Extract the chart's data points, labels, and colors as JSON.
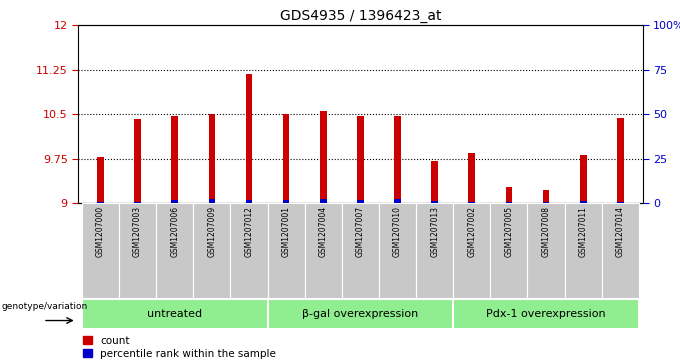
{
  "title": "GDS4935 / 1396423_at",
  "samples": [
    "GSM1207000",
    "GSM1207003",
    "GSM1207006",
    "GSM1207009",
    "GSM1207012",
    "GSM1207001",
    "GSM1207004",
    "GSM1207007",
    "GSM1207010",
    "GSM1207013",
    "GSM1207002",
    "GSM1207005",
    "GSM1207008",
    "GSM1207011",
    "GSM1207014"
  ],
  "counts": [
    9.78,
    10.42,
    10.48,
    10.51,
    11.18,
    10.5,
    10.55,
    10.48,
    10.47,
    9.72,
    9.84,
    9.27,
    9.22,
    9.82,
    10.43
  ],
  "percentiles": [
    0.03,
    0.03,
    0.05,
    0.08,
    0.05,
    0.05,
    0.07,
    0.06,
    0.07,
    0.04,
    0.03,
    0.03,
    0.03,
    0.04,
    0.03
  ],
  "groups": [
    {
      "label": "untreated",
      "start": 0,
      "end": 5
    },
    {
      "label": "β-gal overexpression",
      "start": 5,
      "end": 10
    },
    {
      "label": "Pdx-1 overexpression",
      "start": 10,
      "end": 15
    }
  ],
  "ymin": 9.0,
  "ymax": 12.0,
  "yticks": [
    9.0,
    9.75,
    10.5,
    11.25,
    12.0
  ],
  "ytick_labels": [
    "9",
    "9.75",
    "10.5",
    "11.25",
    "12"
  ],
  "y2ticks": [
    0,
    25,
    50,
    75,
    100
  ],
  "y2tick_labels": [
    "0",
    "25",
    "50",
    "75",
    "100%"
  ],
  "bar_color": "#cc0000",
  "percentile_color": "#0000cc",
  "group_bg_color": "#90ee90",
  "label_bg_color": "#c8c8c8",
  "genotype_label": "genotype/variation",
  "count_label": "count",
  "percentile_label": "percentile rank within the sample",
  "bar_width": 0.18,
  "left_ylabel_color": "#cc0000",
  "right_ylabel_color": "#0000cc",
  "grid_color": "#000000"
}
